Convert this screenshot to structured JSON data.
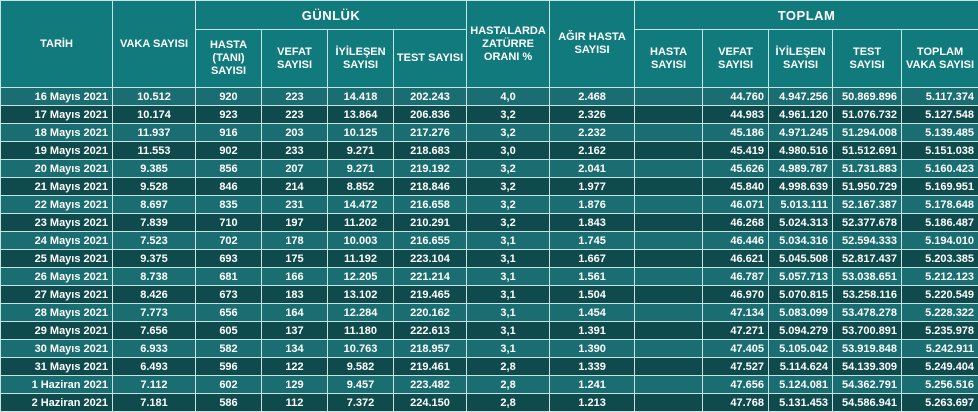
{
  "header": {
    "tarih": "TARİH",
    "vaka": "VAKA SAYISI",
    "gunluk": "GÜNLÜK",
    "toplam": "TOPLAM",
    "hasta_tani": "HASTA (TANI) SAYISI",
    "vefat": "VEFAT SAYISI",
    "iyilesen": "İYİLEŞEN SAYISI",
    "test": "TEST SAYISI",
    "zature": "HASTALARDA ZATÜRRE ORANI %",
    "agir": "AĞIR HASTA SAYISI",
    "t_hasta": "HASTA SAYISI",
    "t_vefat": "VEFAT SAYISI",
    "t_iyilesen": "İYİLEŞEN SAYISI",
    "t_test": "TEST SAYISI",
    "t_vaka": "TOPLAM VAKA SAYISI"
  },
  "rows": [
    [
      "16 Mayıs 2021",
      "10.512",
      "920",
      "223",
      "14.418",
      "202.243",
      "4,0",
      "2.468",
      "",
      "44.760",
      "4.947.256",
      "50.869.896",
      "5.117.374"
    ],
    [
      "17 Mayıs 2021",
      "10.174",
      "923",
      "223",
      "13.864",
      "206.836",
      "3,2",
      "2.326",
      "",
      "44.983",
      "4.961.120",
      "51.076.732",
      "5.127.548"
    ],
    [
      "18 Mayıs 2021",
      "11.937",
      "916",
      "203",
      "10.125",
      "217.276",
      "3,2",
      "2.232",
      "",
      "45.186",
      "4.971.245",
      "51.294.008",
      "5.139.485"
    ],
    [
      "19 Mayıs 2021",
      "11.553",
      "902",
      "233",
      "9.271",
      "218.683",
      "3,0",
      "2.162",
      "",
      "45.419",
      "4.980.516",
      "51.512.691",
      "5.151.038"
    ],
    [
      "20 Mayıs 2021",
      "9.385",
      "856",
      "207",
      "9.271",
      "219.192",
      "3,2",
      "2.041",
      "",
      "45.626",
      "4.989.787",
      "51.731.883",
      "5.160.423"
    ],
    [
      "21 Mayıs 2021",
      "9.528",
      "846",
      "214",
      "8.852",
      "218.846",
      "3,2",
      "1.977",
      "",
      "45.840",
      "4.998.639",
      "51.950.729",
      "5.169.951"
    ],
    [
      "22 Mayıs 2021",
      "8.697",
      "835",
      "231",
      "14.472",
      "216.658",
      "3,2",
      "1.876",
      "",
      "46.071",
      "5.013.111",
      "52.167.387",
      "5.178.648"
    ],
    [
      "23 Mayıs 2021",
      "7.839",
      "710",
      "197",
      "11.202",
      "210.291",
      "3,2",
      "1.843",
      "",
      "46.268",
      "5.024.313",
      "52.377.678",
      "5.186.487"
    ],
    [
      "24 Mayıs 2021",
      "7.523",
      "702",
      "178",
      "10.003",
      "216.655",
      "3,1",
      "1.745",
      "",
      "46.446",
      "5.034.316",
      "52.594.333",
      "5.194.010"
    ],
    [
      "25 Mayıs 2021",
      "9.375",
      "693",
      "175",
      "11.192",
      "223.104",
      "3,1",
      "1.667",
      "",
      "46.621",
      "5.045.508",
      "52.817.437",
      "5.203.385"
    ],
    [
      "26 Mayıs 2021",
      "8.738",
      "681",
      "166",
      "12.205",
      "221.214",
      "3,1",
      "1.561",
      "",
      "46.787",
      "5.057.713",
      "53.038.651",
      "5.212.123"
    ],
    [
      "27 Mayıs 2021",
      "8.426",
      "673",
      "183",
      "13.102",
      "219.465",
      "3,1",
      "1.504",
      "",
      "46.970",
      "5.070.815",
      "53.258.116",
      "5.220.549"
    ],
    [
      "28 Mayıs 2021",
      "7.773",
      "656",
      "164",
      "12.284",
      "220.162",
      "3,1",
      "1.454",
      "",
      "47.134",
      "5.083.099",
      "53.478.278",
      "5.228.322"
    ],
    [
      "29 Mayıs 2021",
      "7.656",
      "605",
      "137",
      "11.180",
      "222.613",
      "3,1",
      "1.391",
      "",
      "47.271",
      "5.094.279",
      "53.700.891",
      "5.235.978"
    ],
    [
      "30 Mayıs 2021",
      "6.933",
      "582",
      "134",
      "10.763",
      "218.957",
      "3,1",
      "1.390",
      "",
      "47.405",
      "5.105.042",
      "53.919.848",
      "5.242.911"
    ],
    [
      "31 Mayıs 2021",
      "6.493",
      "596",
      "122",
      "9.582",
      "219.461",
      "2,8",
      "1.339",
      "",
      "47.527",
      "5.114.624",
      "54.139.309",
      "5.249.404"
    ],
    [
      "1 Haziran 2021",
      "7.112",
      "602",
      "129",
      "9.457",
      "223.482",
      "2,8",
      "1.241",
      "",
      "47.656",
      "5.124.081",
      "54.362.791",
      "5.256.516"
    ],
    [
      "2 Haziran 2021",
      "7.181",
      "586",
      "112",
      "7.372",
      "224.150",
      "2,8",
      "1.213",
      "",
      "47.768",
      "5.131.453",
      "54.586.941",
      "5.263.697"
    ]
  ],
  "colors": {
    "header_bg": "#117a7c",
    "row_light": "#1a6d70",
    "row_dark": "#0f4a4d",
    "border": "#c6e4e4",
    "text": "#ffffff"
  }
}
